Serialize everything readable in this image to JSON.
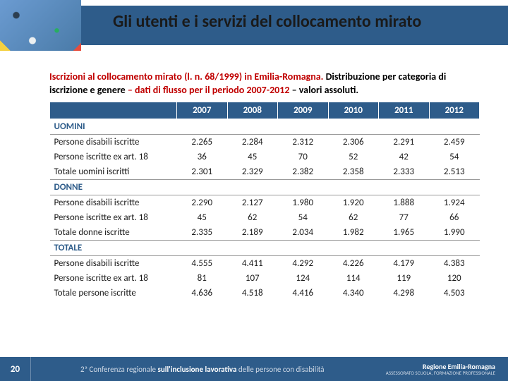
{
  "colors": {
    "brand_blue": "#2e5c8a",
    "caption_red": "#c00000",
    "text": "#1a1a1a",
    "white": "#ffffff"
  },
  "typography": {
    "title_fontsize": 24,
    "caption_fontsize": 14,
    "table_fontsize": 13,
    "footer_fontsize": 11
  },
  "title": "Gli utenti e i servizi del collocamento mirato",
  "caption": {
    "red1": "Iscrizioni al collocamento mirato (l. n. 68/1999) in Emilia-Romagna.",
    "black1": " Distribuzione per categoria di iscrizione e genere ",
    "red2": "– dati di flusso per il periodo 2007-2012",
    "black2": " – valori assoluti."
  },
  "table": {
    "type": "table",
    "columns": [
      "",
      "2007",
      "2008",
      "2009",
      "2010",
      "2011",
      "2012"
    ],
    "col_width_first": 180,
    "header_bg": "#2e5c8a",
    "header_color": "#ffffff",
    "section_color": "#2e5c8a",
    "sections": [
      {
        "label": "UOMINI",
        "rows": [
          {
            "label": "Persone disabili iscritte",
            "cells": [
              "2.265",
              "2.284",
              "2.312",
              "2.306",
              "2.291",
              "2.459"
            ]
          },
          {
            "label": "Persone iscritte ex art. 18",
            "cells": [
              "36",
              "45",
              "70",
              "52",
              "42",
              "54"
            ]
          },
          {
            "label": "Totale uomini iscritti",
            "cells": [
              "2.301",
              "2.329",
              "2.382",
              "2.358",
              "2.333",
              "2.513"
            ]
          }
        ]
      },
      {
        "label": "DONNE",
        "rows": [
          {
            "label": "Persone disabili iscritte",
            "cells": [
              "2.290",
              "2.127",
              "1.980",
              "1.920",
              "1.888",
              "1.924"
            ]
          },
          {
            "label": "Persone iscritte ex art. 18",
            "cells": [
              "45",
              "62",
              "54",
              "62",
              "77",
              "66"
            ]
          },
          {
            "label": "Totale donne iscritte",
            "cells": [
              "2.335",
              "2.189",
              "2.034",
              "1.982",
              "1.965",
              "1.990"
            ]
          }
        ]
      },
      {
        "label": "TOTALE",
        "rows": [
          {
            "label": "Persone disabili iscritte",
            "cells": [
              "4.555",
              "4.411",
              "4.292",
              "4.226",
              "4.179",
              "4.383"
            ]
          },
          {
            "label": "Persone iscritte ex art. 18",
            "cells": [
              "81",
              "107",
              "124",
              "114",
              "119",
              "120"
            ]
          },
          {
            "label": "Totale persone iscritte",
            "cells": [
              "4.636",
              "4.518",
              "4.416",
              "4.340",
              "4.298",
              "4.503"
            ]
          }
        ]
      }
    ]
  },
  "footer": {
    "page_number": "20",
    "conf_prefix": "2ª Conferenza regionale ",
    "conf_bold": "sull'inclusione lavorativa",
    "conf_suffix": " delle persone con disabilità",
    "logo_line1": "Regione Emilia-Romagna",
    "logo_line2": "ASSESSORATO SCUOLA, FORMAZIONE PROFESSIONALE"
  }
}
